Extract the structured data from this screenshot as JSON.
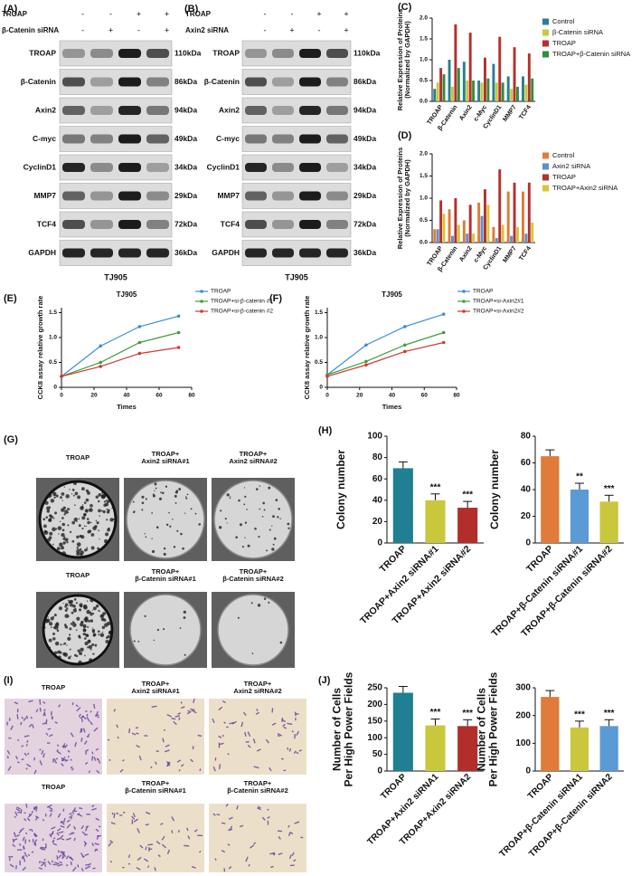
{
  "panel_labels": [
    "(A)",
    "(B)",
    "(C)",
    "(D)",
    "(E)",
    "(F)",
    "(G)",
    "(H)",
    "(I)",
    "(J)"
  ],
  "blots": [
    {
      "conditions": [
        {
          "label": "TROAP",
          "signs": [
            "-",
            "-",
            "+",
            "+"
          ]
        },
        {
          "label": "β-Catenin siRNA",
          "signs": [
            "-",
            "+",
            "-",
            "+"
          ]
        }
      ],
      "proteins": [
        "TROAP",
        "β-Catenin",
        "Axin2",
        "C-myc",
        "CyclinD1",
        "MMP7",
        "TCF4",
        "GAPDH"
      ],
      "sizes": [
        "110kDa",
        "86kDa",
        "94kDa",
        "49kDa",
        "34kDa",
        "29kDa",
        "72kDa",
        "36kDa"
      ],
      "cell_line": "TJ905"
    },
    {
      "conditions": [
        {
          "label": "TROAP",
          "signs": [
            "-",
            "-",
            "+",
            "+"
          ]
        },
        {
          "label": "Axin2 siRNA",
          "signs": [
            "-",
            "+",
            "-",
            "+"
          ]
        }
      ],
      "proteins": [
        "TROAP",
        "β-Catenin",
        "Axin2",
        "C-myc",
        "CyclinD1",
        "MMP7",
        "TCF4",
        "GAPDH"
      ],
      "sizes": [
        "110kDa",
        "86kDa",
        "94kDa",
        "49kDa",
        "34kDa",
        "29kDa",
        "72kDa",
        "36kDa"
      ],
      "cell_line": "TJ905"
    }
  ],
  "chart_data": [
    {
      "type": "bar",
      "ylabel": [
        "Relative Expression of Proteins",
        "(Normalized by GAPDH)"
      ],
      "categories": [
        "TROAP",
        "β-Catenin",
        "Axin2",
        "c-Myc",
        "CyclinD1",
        "MMP7",
        "TCF4"
      ],
      "series": [
        {
          "name": "Control",
          "color": "#2a7f90",
          "values": [
            0.3,
            1.0,
            0.95,
            0.5,
            0.9,
            0.6,
            0.6
          ]
        },
        {
          "name": "β-Catenin siRNA",
          "color": "#c9c73c",
          "values": [
            0.45,
            0.35,
            0.5,
            0.45,
            0.45,
            0.3,
            0.4
          ]
        },
        {
          "name": "TROAP",
          "color": "#b3302d",
          "values": [
            0.8,
            1.85,
            1.65,
            1.05,
            1.55,
            1.3,
            1.15
          ]
        },
        {
          "name": "TROAP+β-Catenin siRNA",
          "color": "#2f8d3f",
          "values": [
            0.65,
            0.8,
            0.5,
            0.55,
            0.45,
            0.35,
            0.55
          ]
        }
      ],
      "ylim": [
        0,
        2
      ],
      "yticks": [
        {
          "value": 0,
          "label": "0.0"
        },
        0.5,
        {
          "value": 1,
          "label": "1.0"
        },
        1.5,
        {
          "value": 2,
          "label": "2.0"
        }
      ],
      "legend": "right"
    },
    {
      "type": "bar",
      "ylabel": [
        "Relative Expression of Proteins",
        "(Normalized by GAPDH)"
      ],
      "categories": [
        "TROAP",
        "β-Catenin",
        "Axin2",
        "c-Myc",
        "CyclinD1",
        "MMP7",
        "TCF4"
      ],
      "series": [
        {
          "name": "Control",
          "color": "#e07b39",
          "values": [
            0.3,
            0.75,
            0.5,
            0.9,
            0.35,
            1.15,
            1.15
          ]
        },
        {
          "name": "Axin2 siRNA",
          "color": "#5b8fd0",
          "values": [
            0.3,
            0.15,
            0.2,
            0.6,
            0.1,
            0.15,
            0.2
          ]
        },
        {
          "name": "TROAP",
          "color": "#b3302d",
          "values": [
            0.95,
            1.0,
            0.85,
            1.2,
            1.65,
            1.35,
            1.35
          ]
        },
        {
          "name": "TROAP+Axin2 siRNA",
          "color": "#d9c43a",
          "values": [
            0.65,
            0.4,
            0.2,
            0.85,
            0.4,
            0.35,
            0.45
          ]
        }
      ],
      "ylim": [
        0,
        2
      ],
      "yticks": [
        {
          "value": 0,
          "label": "0.0"
        },
        0.5,
        {
          "value": 1,
          "label": "1.0"
        },
        1.5,
        {
          "value": 2,
          "label": "2.0"
        }
      ],
      "legend": "right"
    },
    {
      "type": "line",
      "title": "TJ905",
      "xlabel": "Times",
      "ylabel": "CCK8 assay relative growth rate",
      "x": [
        0,
        24,
        48,
        72
      ],
      "series": [
        {
          "name": "TROAP",
          "color": "#3a8fd6",
          "values": [
            0.22,
            0.83,
            1.22,
            1.43
          ]
        },
        {
          "name": "TROAP+si-β-catenin #1",
          "color": "#3e9e3e",
          "values": [
            0.22,
            0.5,
            0.9,
            1.1
          ]
        },
        {
          "name": "TROAP+si-β-catenin #2",
          "color": "#d03a2e",
          "values": [
            0.22,
            0.42,
            0.68,
            0.8
          ]
        }
      ],
      "xlim": [
        0,
        80
      ],
      "xticks": [
        0,
        20,
        40,
        60,
        80
      ],
      "ylim": [
        0,
        1.6
      ],
      "yticks": [
        0,
        0.5,
        {
          "value": 1,
          "label": "1.0"
        },
        1.5
      ],
      "legend": "right"
    },
    {
      "type": "line",
      "title": "TJ905",
      "xlabel": "Times",
      "ylabel": "CCK8 assay relative growth rate",
      "x": [
        0,
        24,
        48,
        72
      ],
      "series": [
        {
          "name": "TROAP",
          "color": "#3a8fd6",
          "values": [
            0.25,
            0.85,
            1.22,
            1.47
          ]
        },
        {
          "name": "TROAP+si-Axin2#1",
          "color": "#3e9e3e",
          "values": [
            0.25,
            0.52,
            0.85,
            1.1
          ]
        },
        {
          "name": "TROAP+si-Axin2#2",
          "color": "#d03a2e",
          "values": [
            0.22,
            0.45,
            0.72,
            0.9
          ]
        }
      ],
      "xlim": [
        0,
        80
      ],
      "xticks": [
        0,
        20,
        40,
        60,
        80
      ],
      "ylim": [
        0,
        1.6
      ],
      "yticks": [
        0,
        0.5,
        {
          "value": 1,
          "label": "1.0"
        },
        1.5
      ],
      "legend": "right"
    },
    {
      "type": "bar",
      "ylabel": "Colony number",
      "categories": [
        "TROAP",
        "TROAP+Axin2 siRNA#1",
        "TROAP+Axin2 siRNA#2"
      ],
      "values": [
        70,
        40,
        33
      ],
      "colors": [
        "#1f7f93",
        "#c9c73c",
        "#b22e2b"
      ],
      "annotations": [
        null,
        "***",
        "***"
      ],
      "ylim": [
        0,
        100
      ],
      "yticks": [
        0,
        20,
        40,
        60,
        80,
        100
      ]
    },
    {
      "type": "bar",
      "ylabel": "Colony number",
      "categories": [
        "TROAP",
        "TROAP+β-Catenin siRNA#1",
        "TROAP+β-Catenin siRNA#2"
      ],
      "values": [
        65,
        40,
        31
      ],
      "colors": [
        "#e07b39",
        "#5b9bd5",
        "#c9c73c"
      ],
      "annotations": [
        null,
        "**",
        "***"
      ],
      "ylim": [
        0,
        80
      ],
      "yticks": [
        0,
        20,
        40,
        60,
        80
      ]
    },
    {
      "type": "bar",
      "ylabel": [
        "Number of Cells",
        "Per High Power Fields"
      ],
      "categories": [
        "TROAP",
        "TROAP+Axin2 siRNA1",
        "TROAP+Axin2 siRNA2"
      ],
      "values": [
        235,
        137,
        135
      ],
      "colors": [
        "#1f7f93",
        "#c9c73c",
        "#b22e2b"
      ],
      "annotations": [
        null,
        "***",
        "***"
      ],
      "ylim": [
        0,
        250
      ],
      "yticks": [
        0,
        50,
        100,
        150,
        200,
        250
      ]
    },
    {
      "type": "bar",
      "ylabel": [
        "Number of Cells",
        "Per High Power Fields"
      ],
      "categories": [
        "TROAP",
        "TROAP+β-Catenin siRNA1",
        "TROAP+β-Catenin siRNA2"
      ],
      "values": [
        267,
        157,
        162
      ],
      "colors": [
        "#e07b39",
        "#c9c73c",
        "#5b9bd5"
      ],
      "annotations": [
        null,
        "***",
        "***"
      ],
      "ylim": [
        0,
        300
      ],
      "yticks": [
        0,
        100,
        200,
        300
      ]
    }
  ],
  "colony_images": [
    [
      "TROAP"
    ],
    [
      "TROAP+",
      "Axin2 siRNA#1"
    ],
    [
      "TROAP+",
      "Axin2 siRNA#2"
    ],
    [
      "TROAP"
    ],
    [
      "TROAP+",
      "β-Catenin siRNA#1"
    ],
    [
      "TROAP+",
      "β-Catenin siRNA#2"
    ]
  ],
  "transwell_images": [
    [
      "TROAP"
    ],
    [
      "TROAP+",
      "Axin2 siRNA#1"
    ],
    [
      "TROAP+",
      "Axin2 siRNA#2"
    ],
    [
      "TROAP"
    ],
    [
      "TROAP+",
      "β-Catenin siRNA#1"
    ],
    [
      "TROAP+",
      "β-Catenin siRNA#2"
    ]
  ]
}
